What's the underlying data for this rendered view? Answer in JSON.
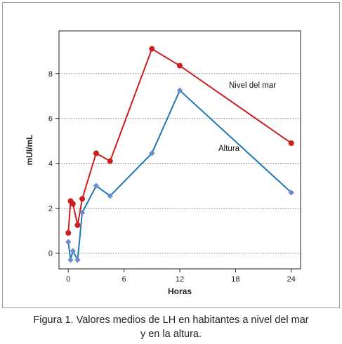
{
  "chart_data": {
    "type": "line",
    "title": "",
    "xlabel": "Horas",
    "ylabel": "mUI/mL",
    "xlim": [
      -1,
      25
    ],
    "ylim": [
      -0.7,
      9.9
    ],
    "xticks": [
      0,
      6,
      12,
      18,
      24
    ],
    "yticks": [
      0,
      2,
      4,
      6,
      8
    ],
    "grid": "horizontal dotted",
    "series": [
      {
        "name": "Nivel del mar",
        "color": "#cc1f1f",
        "marker": "circle",
        "x": [
          0,
          0.25,
          0.5,
          1,
          1.5,
          3,
          4.5,
          9,
          12,
          24
        ],
        "y": [
          0.9,
          2.32,
          2.2,
          1.25,
          2.42,
          4.45,
          4.1,
          9.1,
          8.35,
          4.9
        ]
      },
      {
        "name": "Altura",
        "color": "#1f77b4",
        "marker": "diamond",
        "x": [
          0,
          0.25,
          0.5,
          1,
          1.5,
          3,
          4.5,
          9,
          12,
          24
        ],
        "y": [
          0.5,
          -0.3,
          0.1,
          -0.3,
          1.8,
          3.0,
          2.55,
          4.45,
          7.25,
          2.7
        ]
      }
    ]
  },
  "caption": {
    "line1": "Figura 1. Valores medios de LH en habitantes a nivel del mar",
    "line2": "y en la altura."
  }
}
